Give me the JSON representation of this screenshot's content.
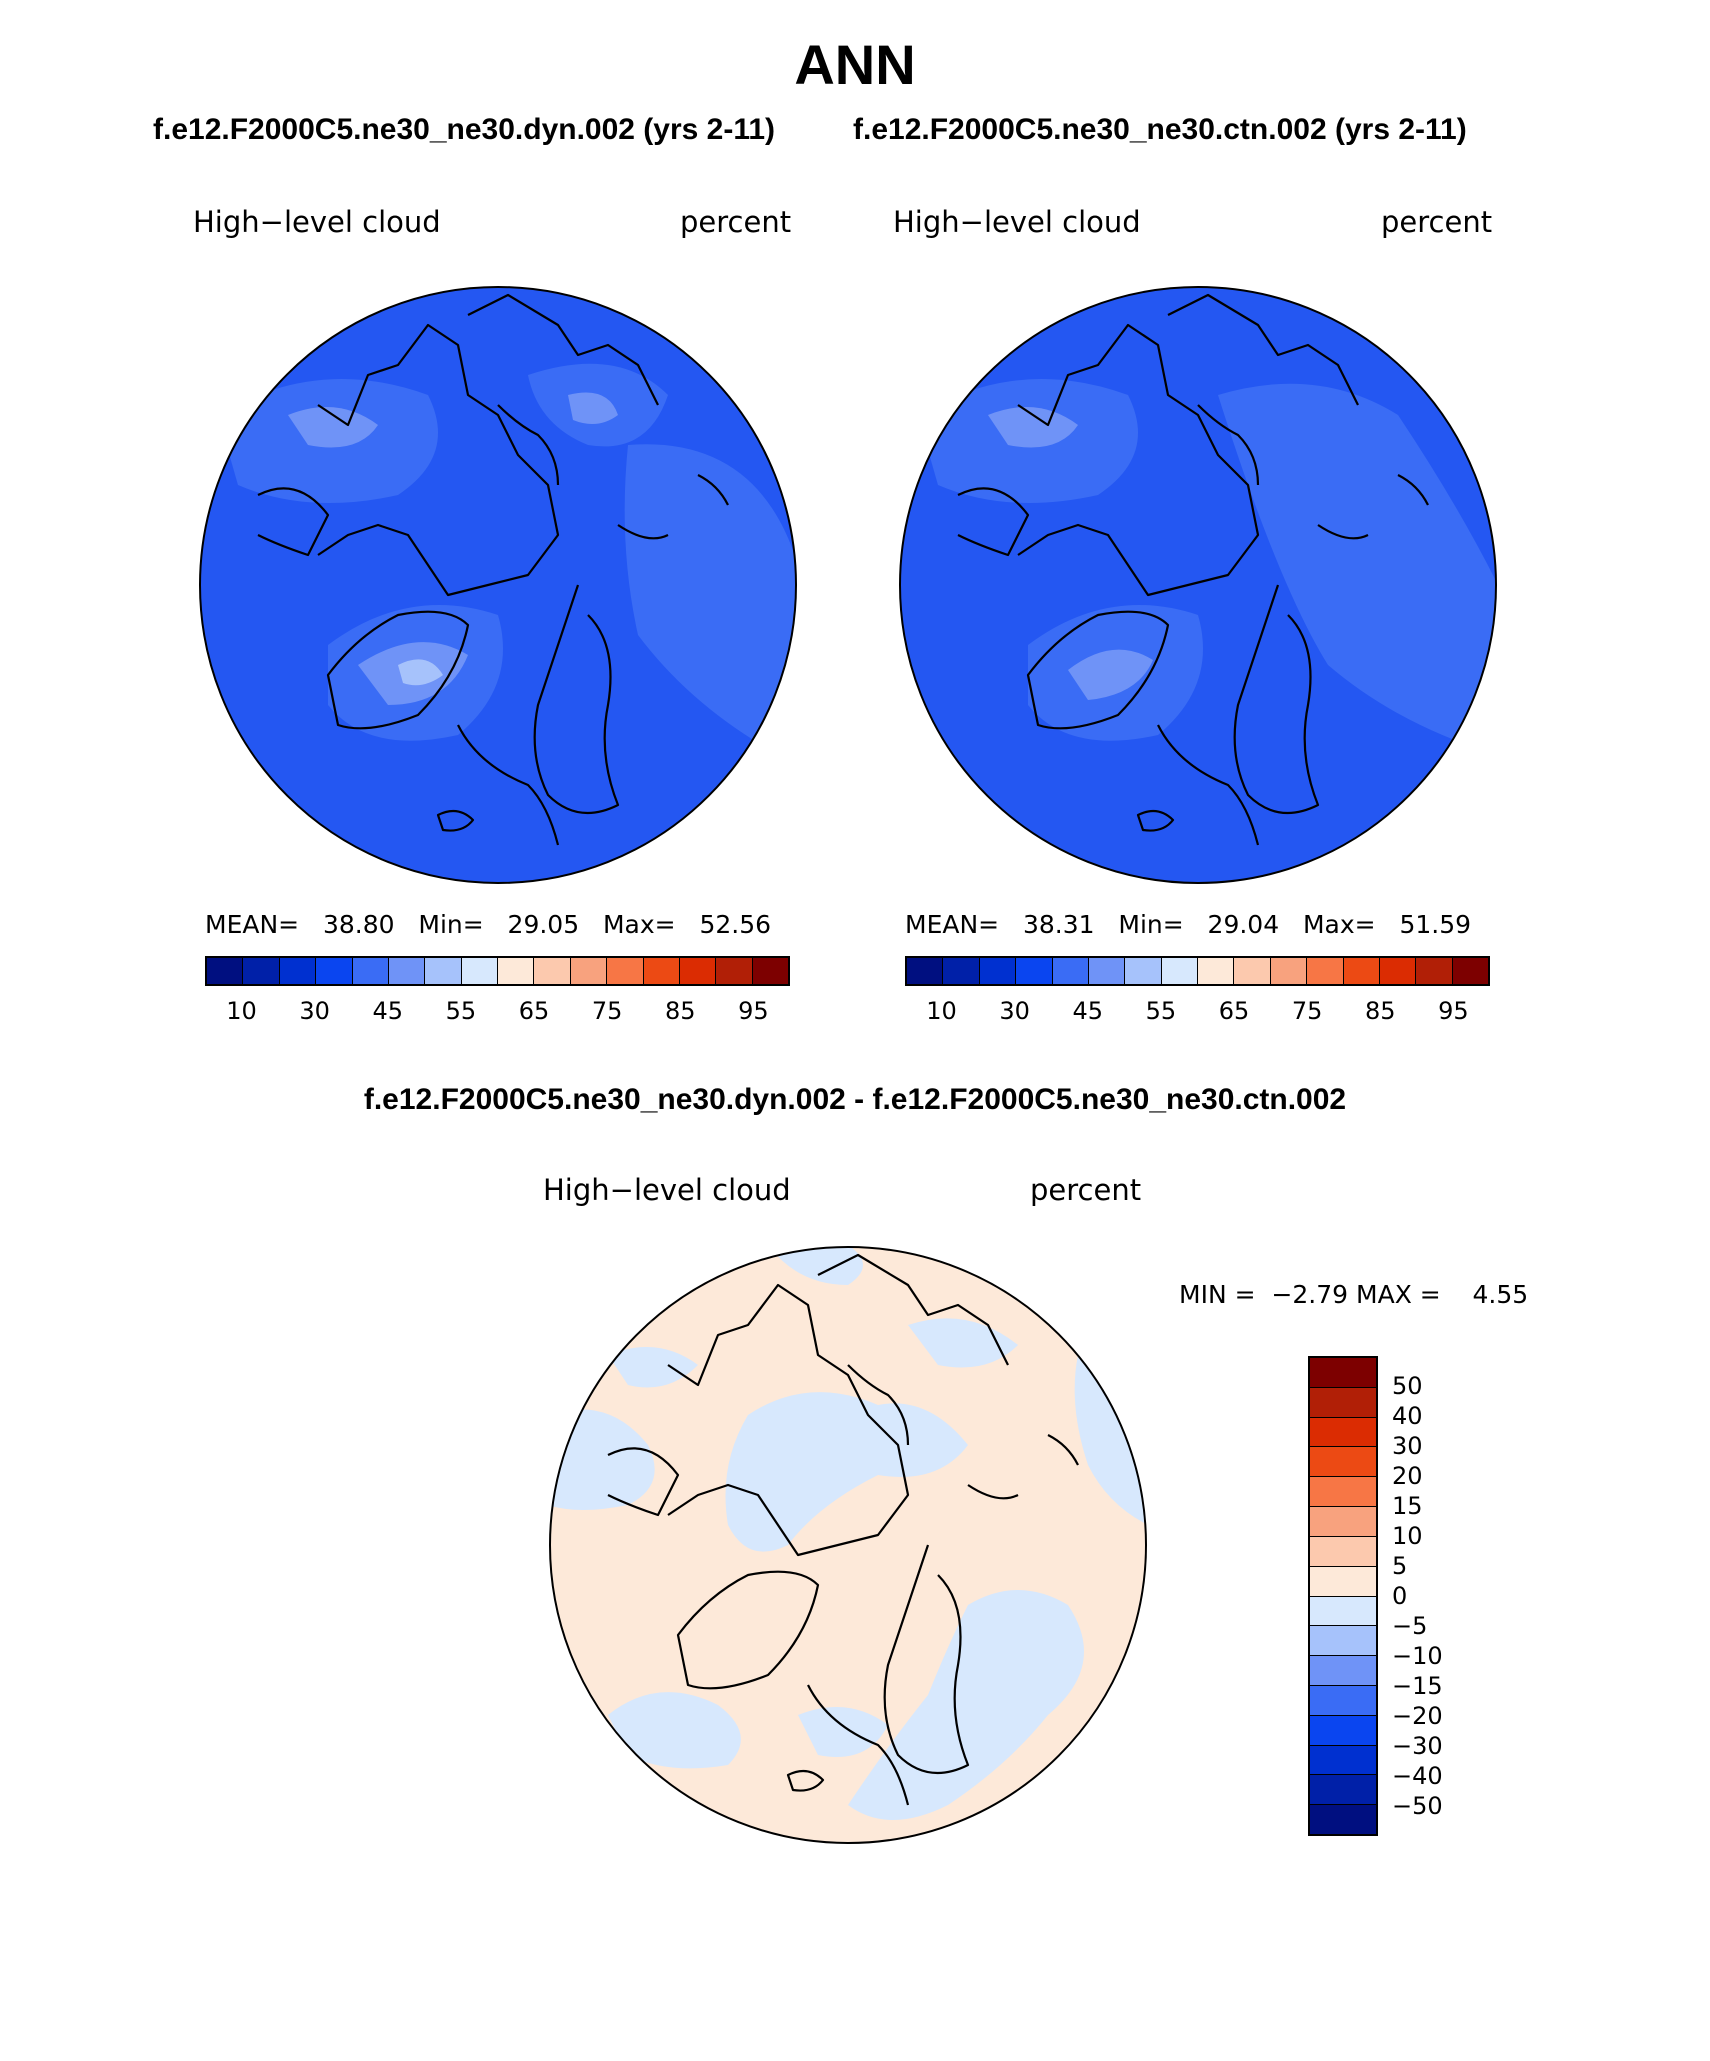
{
  "title": "ANN",
  "top_subtitle_left": "f.e12.F2000C5.ne30_ne30.dyn.002 (yrs 2-11)",
  "top_subtitle_right": "f.e12.F2000C5.ne30_ne30.ctn.002 (yrs 2-11)",
  "diff_subtitle": "f.e12.F2000C5.ne30_ne30.dyn.002 - f.e12.F2000C5.ne30_ne30.ctn.002",
  "panels": {
    "left": {
      "variable": "High−level cloud",
      "units": "percent",
      "mean_label": "MEAN=",
      "mean": "38.80",
      "min_label": "Min=",
      "min": "29.05",
      "max_label": "Max=",
      "max": "52.56"
    },
    "right": {
      "variable": "High−level cloud",
      "units": "percent",
      "mean_label": "MEAN=",
      "mean": "38.31",
      "min_label": "Min=",
      "min": "29.04",
      "max_label": "Max=",
      "max": "51.59"
    },
    "diff": {
      "variable": "High−level cloud",
      "units": "percent",
      "min_label": "MIN =",
      "min": "−2.79",
      "max_label": "MAX =",
      "max": "4.55"
    }
  },
  "colorbar_abs": {
    "colors": [
      "#000f80",
      "#0020a8",
      "#0030d0",
      "#0a45f0",
      "#3a6cf5",
      "#6f93f7",
      "#a6c2fb",
      "#d7e8fd",
      "#fde9d9",
      "#fcc9ae",
      "#f8a27e",
      "#f77645",
      "#ec4a14",
      "#db2c02",
      "#b11f06",
      "#7d0000"
    ],
    "ticks": [
      "10",
      "30",
      "45",
      "55",
      "65",
      "75",
      "85",
      "95"
    ]
  },
  "colorbar_diff": {
    "colors_top_to_bottom": [
      "#7d0000",
      "#b11f06",
      "#db2c02",
      "#ec4a14",
      "#f77645",
      "#f8a27e",
      "#fcc9ae",
      "#fde9d9",
      "#d7e8fd",
      "#a6c2fb",
      "#6f93f7",
      "#3a6cf5",
      "#0a45f0",
      "#0030d0",
      "#0020a8",
      "#000f80"
    ],
    "ticks_top_to_bottom": [
      "50",
      "40",
      "30",
      "20",
      "15",
      "10",
      "5",
      "0",
      "−5",
      "−10",
      "−15",
      "−20",
      "−30",
      "−40",
      "−50"
    ]
  },
  "map_colors": {
    "abs_background": "#2457f2",
    "abs_light": "#3a6cf5",
    "abs_lighter": "#6f93f7",
    "abs_lightest": "#a6c2fb",
    "diff_positive": "#fde9d9",
    "diff_negative": "#d7e8fd",
    "coast": "#000000"
  },
  "chart_data": {
    "type": "heatmap",
    "title": "ANN",
    "projection": "north polar stereographic",
    "variable": "High-level cloud",
    "units": "percent",
    "panels": [
      {
        "case": "f.e12.F2000C5.ne30_ne30.dyn.002 (yrs 2-11)",
        "mean": 38.8,
        "min": 29.05,
        "max": 52.56
      },
      {
        "case": "f.e12.F2000C5.ne30_ne30.ctn.002 (yrs 2-11)",
        "mean": 38.31,
        "min": 29.04,
        "max": 51.59
      },
      {
        "case": "f.e12.F2000C5.ne30_ne30.dyn.002 - f.e12.F2000C5.ne30_ne30.ctn.002",
        "min": -2.79,
        "max": 4.55
      }
    ],
    "abs_levels": [
      10,
      30,
      45,
      55,
      65,
      75,
      85,
      95
    ],
    "diff_levels": [
      -50,
      -40,
      -30,
      -20,
      -15,
      -10,
      -5,
      0,
      5,
      10,
      15,
      20,
      30,
      40,
      50
    ]
  }
}
